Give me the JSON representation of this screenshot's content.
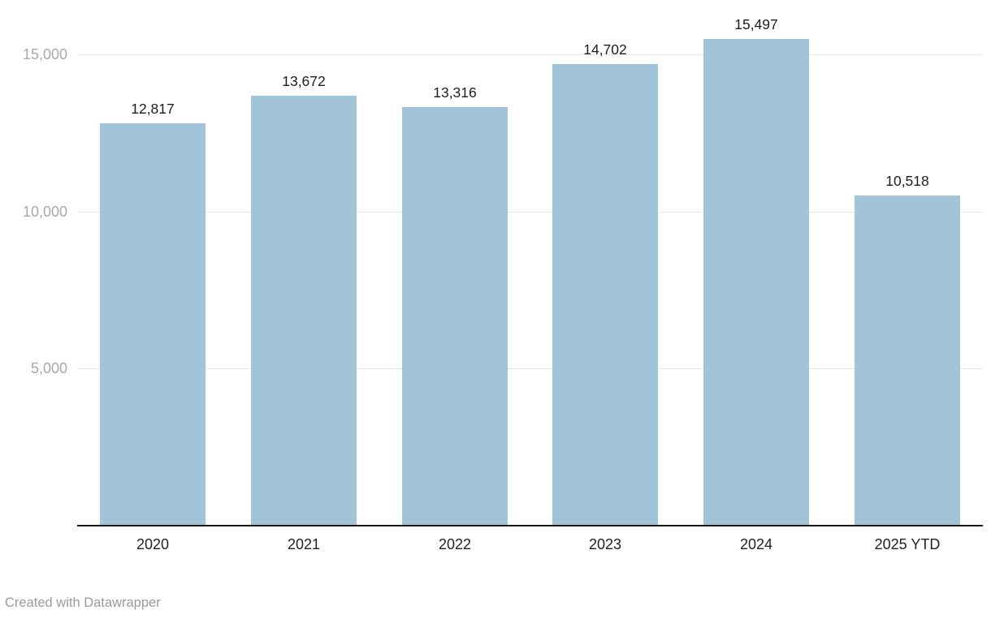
{
  "chart_data": {
    "type": "bar",
    "title": "",
    "xlabel": "",
    "ylabel": "",
    "categories": [
      "2020",
      "2021",
      "2022",
      "2023",
      "2024",
      "2025 YTD"
    ],
    "values": [
      12817,
      13672,
      13316,
      14702,
      15497,
      10518
    ],
    "value_labels": [
      "12,817",
      "13,672",
      "13,316",
      "14,702",
      "15,497",
      "10,518"
    ],
    "yticks": [
      5000,
      10000,
      15000
    ],
    "ytick_labels": [
      "5,000",
      "10,000",
      "15,000"
    ],
    "ylim": [
      0,
      16250
    ],
    "grid": true,
    "legend": false,
    "bar_color": "#a1c4d9"
  },
  "colors": {
    "bar": "#a1c4d9",
    "grid": "#e6e6e6",
    "axis": "#151515",
    "ytick_label": "#a8a8a8",
    "value_label": "#1d1d1d",
    "category_label": "#222222",
    "credit": "#9b9b9b",
    "background": "#ffffff"
  },
  "footer": {
    "credit": "Created with Datawrapper"
  }
}
